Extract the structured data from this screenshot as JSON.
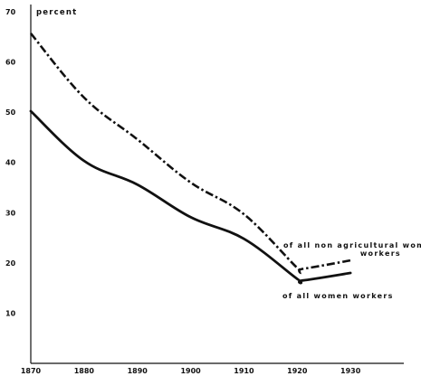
{
  "chart_data": {
    "type": "line",
    "title": "",
    "xlabel": "",
    "ylabel": "percent",
    "x": [
      1870,
      1880,
      1890,
      1900,
      1910,
      1920,
      1921,
      1930
    ],
    "xlim": [
      1870,
      1940
    ],
    "ylim": [
      0,
      70
    ],
    "xticks": [
      "1870",
      "1880",
      "1890",
      "1900",
      "1910",
      "1920",
      "1930"
    ],
    "yticks": [
      "10",
      "20",
      "30",
      "40",
      "50",
      "60",
      "70"
    ],
    "grid": false,
    "legend": "none",
    "series": [
      {
        "name": "of all non agricultural women workers",
        "style": "dash-dot",
        "color": "#111111",
        "points": [
          [
            1870,
            65.7
          ],
          [
            1880,
            52.9
          ],
          [
            1890,
            44.6
          ],
          [
            1900,
            36.0
          ],
          [
            1910,
            29.7
          ],
          [
            1920,
            19.0
          ],
          [
            1921,
            18.8
          ],
          [
            1930,
            20.5
          ]
        ]
      },
      {
        "name": "of all women workers",
        "style": "solid",
        "color": "#111111",
        "points": [
          [
            1870,
            50.2
          ],
          [
            1880,
            40.3
          ],
          [
            1890,
            35.6
          ],
          [
            1900,
            29.1
          ],
          [
            1910,
            24.8
          ],
          [
            1920,
            16.8
          ],
          [
            1921,
            16.5
          ],
          [
            1930,
            18.0
          ]
        ]
      }
    ]
  }
}
